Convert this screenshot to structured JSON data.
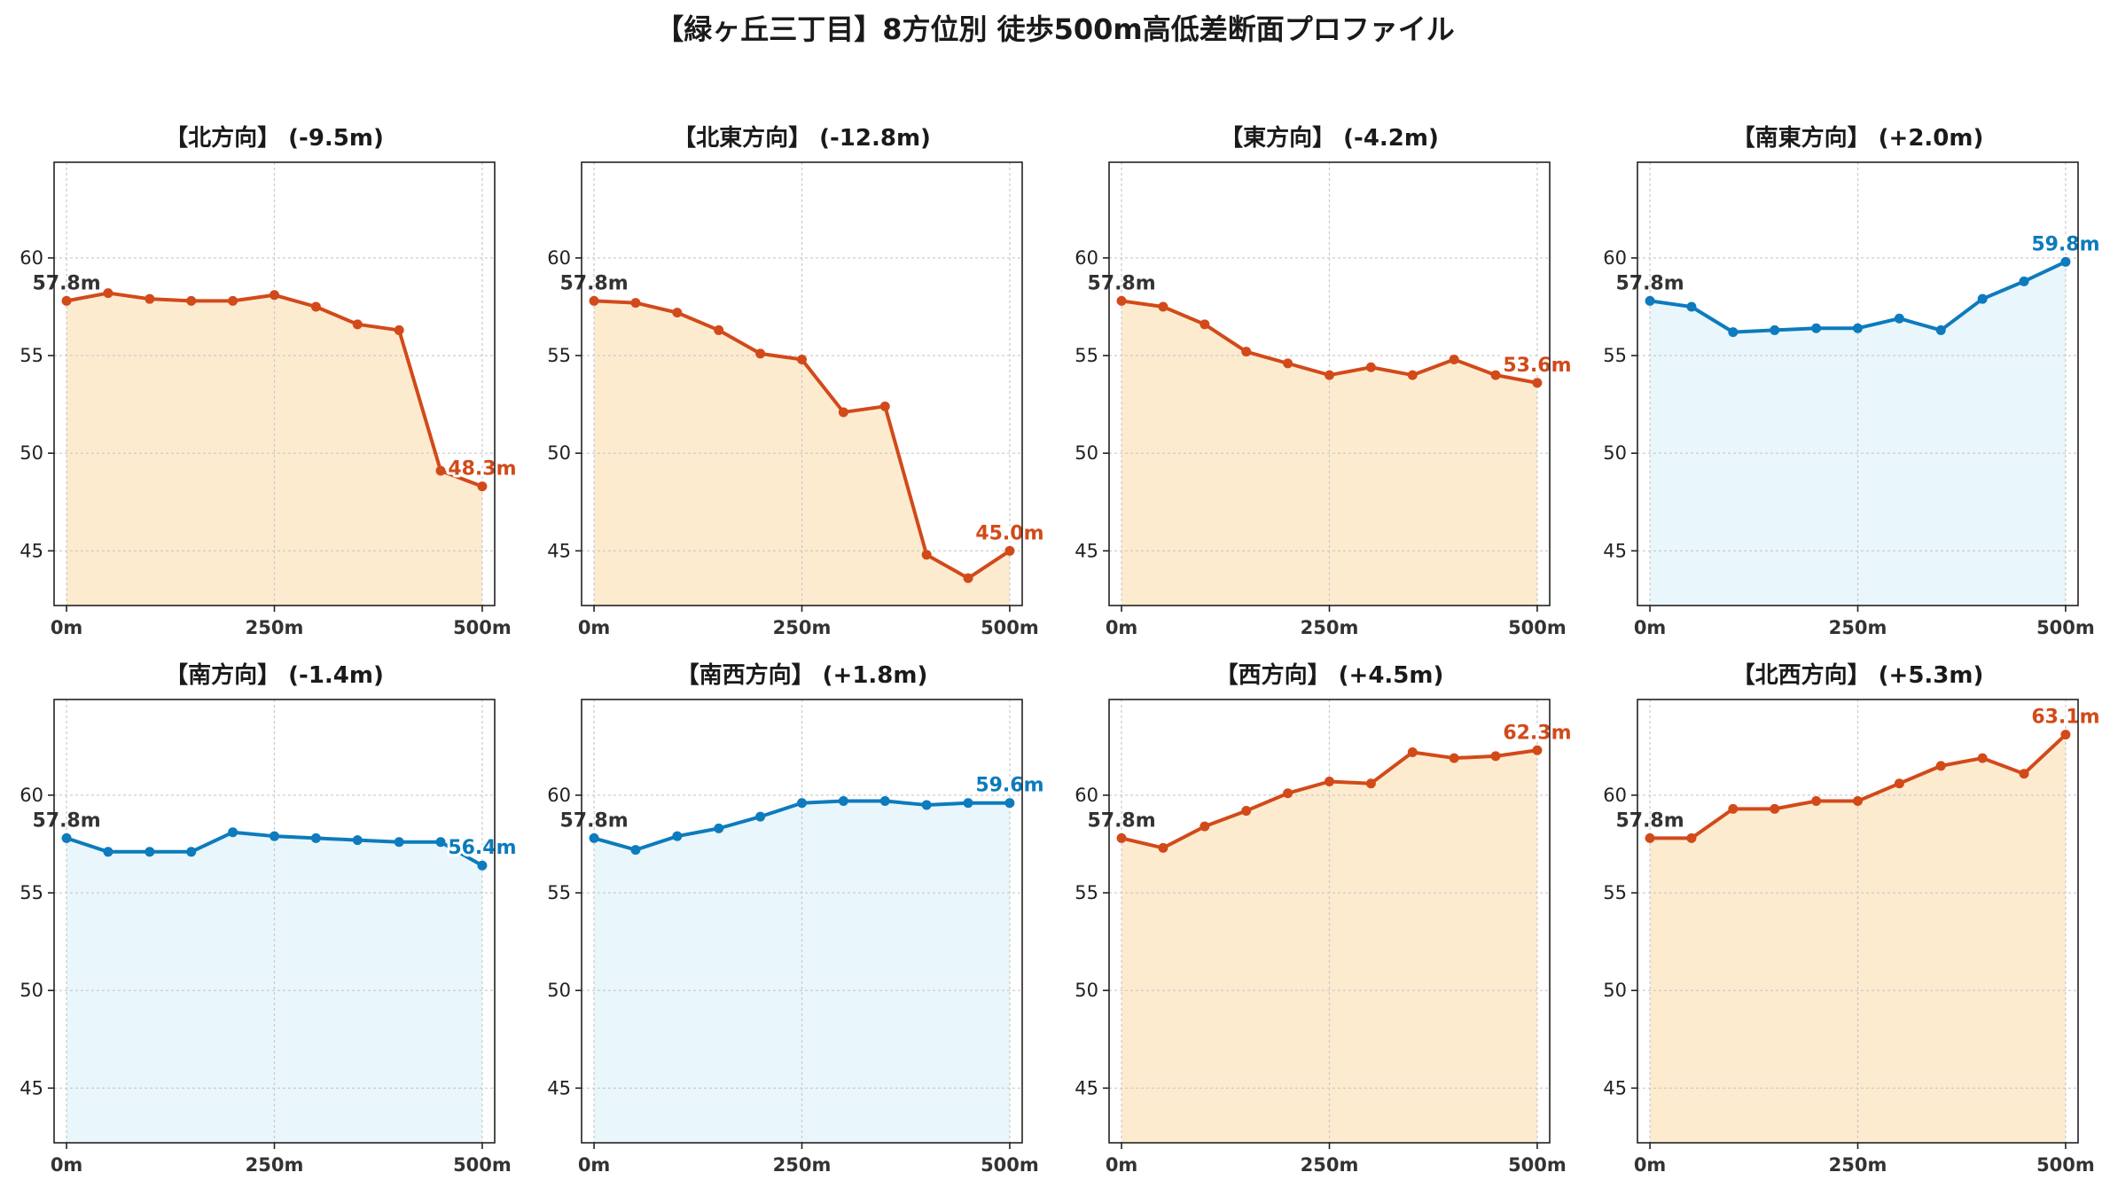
{
  "title": "【緑ヶ丘三丁目】8方位別 徒歩500m高低差断面プロファイル",
  "colors": {
    "down": "#d24a1a",
    "up": "#0d7bbd",
    "fill_warm": "#fdebd0",
    "fill_cool": "#e9f6fb",
    "start_label": "#333333"
  },
  "chart_data": [
    {
      "type": "line",
      "title": "【北方向】 (-9.5m)",
      "trend": "warm",
      "x": [
        0,
        50,
        100,
        150,
        200,
        250,
        300,
        350,
        400,
        450,
        500
      ],
      "y": [
        57.8,
        58.2,
        57.9,
        57.8,
        57.8,
        58.1,
        57.5,
        56.6,
        56.3,
        49.1,
        48.3
      ],
      "start_label": "57.8m",
      "end_label": "48.3m"
    },
    {
      "type": "line",
      "title": "【北東方向】 (-12.8m)",
      "trend": "warm",
      "x": [
        0,
        50,
        100,
        150,
        200,
        250,
        300,
        350,
        400,
        450,
        500
      ],
      "y": [
        57.8,
        57.7,
        57.2,
        56.3,
        55.1,
        54.8,
        52.1,
        52.4,
        44.8,
        43.6,
        45.0
      ],
      "start_label": "57.8m",
      "end_label": "45.0m"
    },
    {
      "type": "line",
      "title": "【東方向】 (-4.2m)",
      "trend": "warm",
      "x": [
        0,
        50,
        100,
        150,
        200,
        250,
        300,
        350,
        400,
        450,
        500
      ],
      "y": [
        57.8,
        57.5,
        56.6,
        55.2,
        54.6,
        54.0,
        54.4,
        54.0,
        54.8,
        54.0,
        53.6
      ],
      "start_label": "57.8m",
      "end_label": "53.6m"
    },
    {
      "type": "line",
      "title": "【南東方向】 (+2.0m)",
      "trend": "cool",
      "x": [
        0,
        50,
        100,
        150,
        200,
        250,
        300,
        350,
        400,
        450,
        500
      ],
      "y": [
        57.8,
        57.5,
        56.2,
        56.3,
        56.4,
        56.4,
        56.9,
        56.3,
        57.9,
        58.8,
        59.8
      ],
      "start_label": "57.8m",
      "end_label": "59.8m"
    },
    {
      "type": "line",
      "title": "【南方向】 (-1.4m)",
      "trend": "cool",
      "x": [
        0,
        50,
        100,
        150,
        200,
        250,
        300,
        350,
        400,
        450,
        500
      ],
      "y": [
        57.8,
        57.1,
        57.1,
        57.1,
        58.1,
        57.9,
        57.8,
        57.7,
        57.6,
        57.6,
        56.4
      ],
      "start_label": "57.8m",
      "end_label": "56.4m"
    },
    {
      "type": "line",
      "title": "【南西方向】 (+1.8m)",
      "trend": "cool",
      "x": [
        0,
        50,
        100,
        150,
        200,
        250,
        300,
        350,
        400,
        450,
        500
      ],
      "y": [
        57.8,
        57.2,
        57.9,
        58.3,
        58.9,
        59.6,
        59.7,
        59.7,
        59.5,
        59.6,
        59.6
      ],
      "start_label": "57.8m",
      "end_label": "59.6m"
    },
    {
      "type": "line",
      "title": "【西方向】 (+4.5m)",
      "trend": "warm",
      "x": [
        0,
        50,
        100,
        150,
        200,
        250,
        300,
        350,
        400,
        450,
        500
      ],
      "y": [
        57.8,
        57.3,
        58.4,
        59.2,
        60.1,
        60.7,
        60.6,
        62.2,
        61.9,
        62.0,
        62.3
      ],
      "start_label": "57.8m",
      "end_label": "62.3m"
    },
    {
      "type": "line",
      "title": "【北西方向】 (+5.3m)",
      "trend": "warm",
      "x": [
        0,
        50,
        100,
        150,
        200,
        250,
        300,
        350,
        400,
        450,
        500
      ],
      "y": [
        57.8,
        57.8,
        59.3,
        59.3,
        59.7,
        59.7,
        60.6,
        61.5,
        61.9,
        61.1,
        63.1
      ],
      "start_label": "57.8m",
      "end_label": "63.1m"
    }
  ],
  "axes": {
    "xlim": [
      -15,
      515
    ],
    "ylim": [
      42.2,
      64.9
    ],
    "xticks": [
      0,
      250,
      500
    ],
    "xtick_labels": [
      "0m",
      "250m",
      "500m"
    ],
    "yticks": [
      45,
      50,
      55,
      60
    ],
    "ytick_labels": [
      "45",
      "50",
      "55",
      "60"
    ],
    "grid": true
  }
}
